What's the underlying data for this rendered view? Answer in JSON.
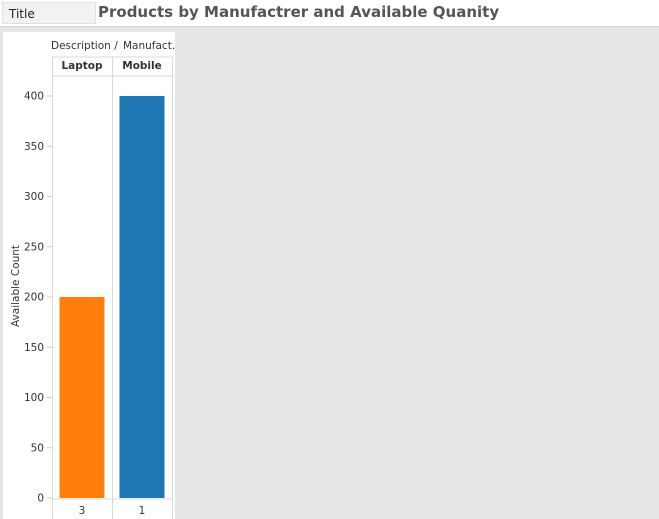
{
  "toolbar": {
    "title_tab_label": "Title"
  },
  "sheet": {
    "title": "Products by Manufactrer and Available Quanity"
  },
  "chart_data": {
    "type": "bar",
    "column_header": {
      "field1": "Description",
      "separator": "/",
      "field2": "Manufact.."
    },
    "categories": [
      "Laptop",
      "Mobile"
    ],
    "values": [
      200,
      400
    ],
    "bottom_labels": [
      "3",
      "1"
    ],
    "colors": [
      "#ff7f0e",
      "#1f77b4"
    ],
    "ylabel": "Available Count",
    "ylim": [
      0,
      400
    ],
    "yticks": [
      0,
      50,
      100,
      150,
      200,
      250,
      300,
      350,
      400
    ]
  }
}
